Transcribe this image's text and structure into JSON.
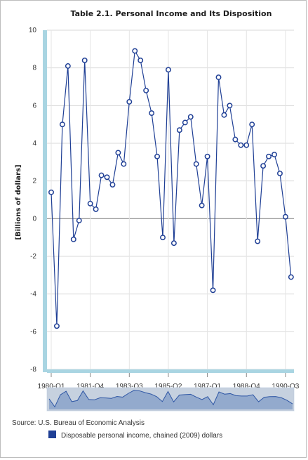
{
  "chart_data": {
    "type": "line",
    "title": "Table 2.1. Personal Income and Its Disposition",
    "ylabel": "[Billions of dollars]",
    "xlabel": "",
    "ylim": [
      -8,
      10
    ],
    "yticks": [
      -8,
      -6,
      -4,
      -2,
      0,
      2,
      4,
      6,
      8,
      10
    ],
    "xtick_labels": [
      "1980-Q1",
      "1981-Q4",
      "1983-Q3",
      "1985-Q2",
      "1987-Q1",
      "1988-Q4",
      "1990-Q3"
    ],
    "x": [
      "1980-Q1",
      "1980-Q2",
      "1980-Q3",
      "1980-Q4",
      "1981-Q1",
      "1981-Q2",
      "1981-Q3",
      "1981-Q4",
      "1982-Q1",
      "1982-Q2",
      "1982-Q3",
      "1982-Q4",
      "1983-Q1",
      "1983-Q2",
      "1983-Q3",
      "1983-Q4",
      "1984-Q1",
      "1984-Q2",
      "1984-Q3",
      "1984-Q4",
      "1985-Q1",
      "1985-Q2",
      "1985-Q3",
      "1985-Q4",
      "1986-Q1",
      "1986-Q2",
      "1986-Q3",
      "1986-Q4",
      "1987-Q1",
      "1987-Q2",
      "1987-Q3",
      "1987-Q4",
      "1988-Q1",
      "1988-Q2",
      "1988-Q3",
      "1988-Q4",
      "1989-Q1",
      "1989-Q2",
      "1989-Q3",
      "1989-Q4",
      "1990-Q1",
      "1990-Q2",
      "1990-Q3",
      "1990-Q4"
    ],
    "series": [
      {
        "name": "Disposable personal income, chained (2009) dollars",
        "color": "#1f3f95",
        "values": [
          1.4,
          -5.7,
          5.0,
          8.1,
          -1.1,
          -0.1,
          8.4,
          0.8,
          0.5,
          2.3,
          2.2,
          1.8,
          3.5,
          2.9,
          6.2,
          8.9,
          8.4,
          6.8,
          5.6,
          3.3,
          -1.0,
          7.9,
          -1.3,
          4.7,
          5.1,
          5.4,
          2.9,
          0.7,
          3.3,
          -3.8,
          7.5,
          5.5,
          6.0,
          4.2,
          3.9,
          3.9,
          5.0,
          -1.2,
          2.8,
          3.3,
          3.4,
          2.4,
          0.1,
          -3.1
        ]
      }
    ],
    "grid": true,
    "legend_position": "bottom",
    "navigator": true,
    "source": "Source: U.S. Bureau of Economic Analysis"
  }
}
